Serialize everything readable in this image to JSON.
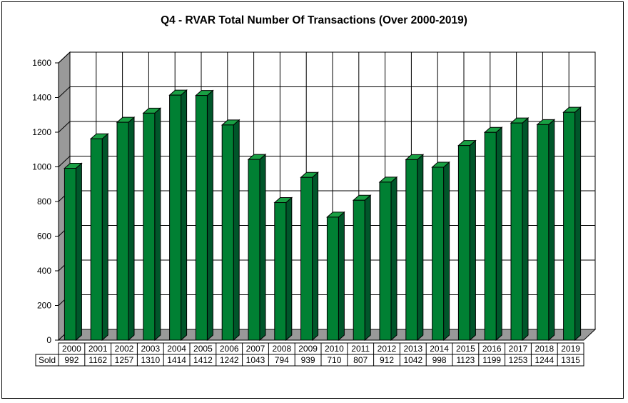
{
  "chart_data": {
    "type": "bar",
    "title": "Q4 - RVAR Total Number Of Transactions (Over 2000-2019)",
    "xlabel": "",
    "ylabel": "",
    "categories": [
      "2000",
      "2001",
      "2002",
      "2003",
      "2004",
      "2005",
      "2006",
      "2007",
      "2008",
      "2009",
      "2010",
      "2011",
      "2012",
      "2013",
      "2014",
      "2015",
      "2016",
      "2017",
      "2018",
      "2019"
    ],
    "series": [
      {
        "name": "Sold",
        "values": [
          992,
          1162,
          1257,
          1310,
          1414,
          1412,
          1242,
          1043,
          794,
          939,
          710,
          807,
          912,
          1042,
          998,
          1123,
          1199,
          1253,
          1244,
          1315
        ]
      }
    ],
    "ylim": [
      0,
      1600
    ],
    "yticks": [
      0,
      200,
      400,
      600,
      800,
      1000,
      1200,
      1400,
      1600
    ],
    "grid": true,
    "legend": "none",
    "data_table": true,
    "colors": {
      "bar_front": "#008033",
      "bar_side": "#00562a",
      "bar_top": "#19a044",
      "side_wall": "#999999",
      "floor": "#999999",
      "grid": "#000000"
    }
  }
}
